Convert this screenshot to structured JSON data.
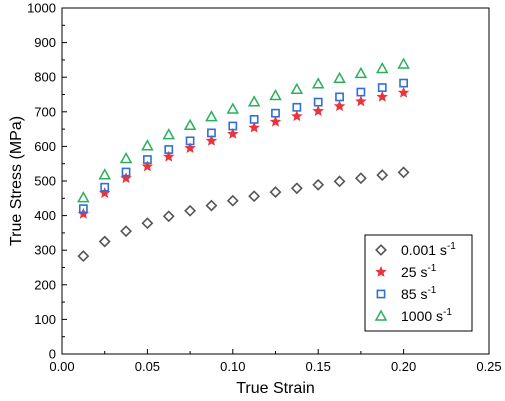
{
  "chart_data": {
    "type": "scatter",
    "title": "",
    "xlabel": "True Strain",
    "ylabel": "True Stress (MPa)",
    "xlim": [
      0,
      0.25
    ],
    "ylim": [
      0,
      1000
    ],
    "xticks": [
      "0.00",
      "0.05",
      "0.10",
      "0.15",
      "0.20",
      "0.25"
    ],
    "yticks": [
      "0",
      "100",
      "200",
      "300",
      "400",
      "500",
      "600",
      "700",
      "800",
      "900",
      "1000"
    ],
    "legend_position": "bottom-right",
    "grid": false,
    "x": [
      0.0125,
      0.025,
      0.0375,
      0.05,
      0.0625,
      0.075,
      0.0875,
      0.1,
      0.1125,
      0.125,
      0.1375,
      0.15,
      0.1625,
      0.175,
      0.1875,
      0.2
    ],
    "series": [
      {
        "name": "0.001",
        "unit": "s",
        "exponent": "-1",
        "marker": "diamond",
        "color": "#555555",
        "values": [
          283,
          325,
          355,
          378,
          398,
          414,
          429,
          443,
          456,
          468,
          479,
          489,
          499,
          508,
          517,
          525
        ]
      },
      {
        "name": "25",
        "unit": "s",
        "exponent": "-1",
        "marker": "star",
        "color": "#e8353b",
        "values": [
          405,
          465,
          508,
          542,
          570,
          595,
          616,
          636,
          654,
          671,
          687,
          702,
          716,
          730,
          743,
          755
        ]
      },
      {
        "name": "85",
        "unit": "s",
        "exponent": "-1",
        "marker": "square",
        "color": "#2f6fd6",
        "values": [
          420,
          482,
          526,
          562,
          591,
          616,
          639,
          659,
          678,
          696,
          713,
          728,
          743,
          757,
          770,
          783
        ]
      },
      {
        "name": "1000",
        "unit": "s",
        "exponent": "-1",
        "marker": "triangle",
        "color": "#2ab05a",
        "values": [
          452,
          518,
          565,
          602,
          634,
          661,
          686,
          708,
          729,
          747,
          765,
          781,
          797,
          811,
          825,
          838
        ]
      }
    ]
  }
}
